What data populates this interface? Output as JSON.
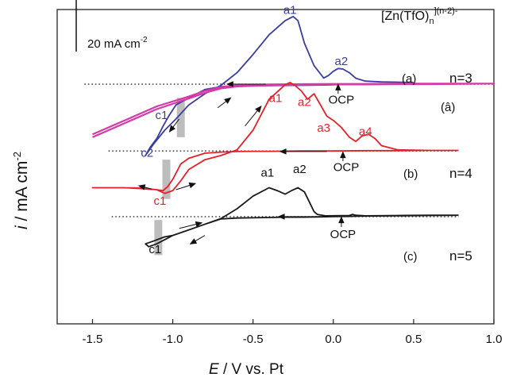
{
  "chart_data": {
    "type": "line",
    "title": "",
    "legend_text": {
      "main": "[Zn(TfO)",
      "sub": "n",
      "sup": "](n-2)-"
    },
    "xlabel": {
      "italic": "E",
      "rest": " / V vs. Pt"
    },
    "ylabel": {
      "italic": "i",
      "rest": " / mA cm",
      "sup": "-2"
    },
    "scale_bar": {
      "label": "20 mA cm",
      "sup": "-2",
      "value": 20
    },
    "xlim": [
      -1.72,
      1.0
    ],
    "ylim": [
      -47,
      65
    ],
    "xticks": [
      -1.5,
      -1.0,
      -0.5,
      0.0,
      0.5,
      1.0
    ],
    "xtick_labels": [
      "-1.5",
      "-1.0",
      "-0.5",
      "0.0",
      "0.5",
      "1.0"
    ],
    "grid": false,
    "series": [
      {
        "label": "(a)",
        "n_label": "n=3",
        "color": "#3a3ea0",
        "baseline": 38.4,
        "x": [
          0.48,
          0.3,
          0.1,
          -0.05,
          -0.2,
          -0.4,
          -0.6,
          -0.7,
          -0.8,
          -0.9,
          -0.98,
          -1.02,
          -1.06,
          -1.1,
          -1.14,
          -1.17,
          -1.12,
          -1.05,
          -0.98,
          -0.9,
          -0.8,
          -0.7,
          -0.6,
          -0.5,
          -0.4,
          -0.3,
          -0.25,
          -0.22,
          -0.18,
          -0.12,
          -0.06,
          -0.03,
          0.0,
          0.03,
          0.06,
          0.1,
          0.14,
          0.2,
          0.3,
          0.5
        ],
        "y": [
          38.6,
          38.5,
          38.3,
          38.1,
          38.0,
          37.9,
          37.8,
          37.5,
          36.5,
          33.5,
          31.0,
          27.5,
          23.5,
          19.0,
          16.0,
          13.0,
          17.0,
          22.0,
          26.0,
          31.0,
          35.0,
          38.0,
          42.5,
          49.0,
          56.0,
          61.0,
          62.5,
          61.0,
          53.0,
          45.0,
          40.6,
          41.5,
          43.0,
          44.0,
          43.8,
          42.5,
          40.5,
          39.5,
          39.2,
          39.0
        ]
      },
      {
        "label": "(â)",
        "color": "#d63aa8",
        "baseline": 38.4,
        "x": [
          -1.5,
          -1.3,
          -1.1,
          -0.9,
          -0.8,
          -0.7,
          -0.6,
          -0.4,
          -0.2,
          0.0,
          0.2,
          0.4,
          0.6,
          0.8,
          1.0,
          0.8,
          0.6,
          0.4,
          0.2,
          0.0,
          -0.2,
          -0.4,
          -0.6,
          -0.7,
          -0.8,
          -0.9,
          -1.1,
          -1.3,
          -1.5
        ],
        "y": [
          20.5,
          25.5,
          30.5,
          34.0,
          36.0,
          37.4,
          38.0,
          38.3,
          38.4,
          38.5,
          38.5,
          38.6,
          38.6,
          38.6,
          38.6,
          38.5,
          38.4,
          38.4,
          38.3,
          38.3,
          38.2,
          38.0,
          37.6,
          36.9,
          35.3,
          33.3,
          29.5,
          24.5,
          19.5
        ]
      },
      {
        "label": "(b)",
        "n_label": "n=4",
        "color": "#e5202a",
        "baseline": 14.6,
        "x": [
          0.78,
          0.6,
          0.4,
          0.2,
          0.0,
          -0.2,
          -0.4,
          -0.5,
          -0.6,
          -0.7,
          -0.8,
          -0.9,
          -0.95,
          -1.0,
          -1.03,
          -1.06,
          -1.1,
          -1.2,
          -1.3,
          -1.5,
          -1.3,
          -1.2,
          -1.1,
          -1.05,
          -1.0,
          -0.95,
          -0.9,
          -0.8,
          -0.7,
          -0.6,
          -0.5,
          -0.4,
          -0.3,
          -0.27,
          -0.24,
          -0.2,
          -0.16,
          -0.12,
          -0.08,
          -0.04,
          0.0,
          0.05,
          0.1,
          0.14,
          0.18,
          0.22,
          0.26,
          0.3,
          0.4,
          0.6,
          0.78
        ],
        "y": [
          14.8,
          14.8,
          14.7,
          14.7,
          14.6,
          14.6,
          14.5,
          14.5,
          14.4,
          14.2,
          13.8,
          12.0,
          10.0,
          4.5,
          2.0,
          0.5,
          0.8,
          1.4,
          1.5,
          1.5,
          1.5,
          1.2,
          0.8,
          -0.5,
          0.5,
          4.0,
          8.0,
          11.5,
          13.0,
          15.0,
          22.0,
          33.0,
          38.2,
          39.0,
          38.0,
          36.0,
          33.0,
          35.0,
          31.0,
          27.0,
          25.5,
          23.0,
          19.5,
          18.0,
          20.0,
          20.5,
          19.0,
          16.5,
          15.0,
          14.8,
          14.8
        ]
      },
      {
        "label": "(c)",
        "n_label": "n=5",
        "color": "#1a1a1a",
        "baseline": -8.8,
        "x": [
          0.78,
          0.6,
          0.4,
          0.2,
          0.1,
          0.0,
          -0.1,
          -0.2,
          -0.3,
          -0.4,
          -0.5,
          -0.6,
          -0.7,
          -0.8,
          -0.9,
          -1.0,
          -1.05,
          -1.1,
          -1.15,
          -1.17,
          -1.12,
          -1.05,
          -1.0,
          -0.95,
          -0.9,
          -0.8,
          -0.7,
          -0.6,
          -0.5,
          -0.4,
          -0.35,
          -0.3,
          -0.26,
          -0.22,
          -0.18,
          -0.15,
          -0.12,
          -0.1,
          -0.05,
          0.1,
          0.12,
          0.14,
          0.2,
          0.4,
          0.6,
          0.78
        ],
        "y": [
          -8.3,
          -8.4,
          -8.5,
          -8.6,
          -8.7,
          -8.8,
          -8.9,
          -9.0,
          -9.0,
          -9.1,
          -9.2,
          -9.3,
          -9.6,
          -11.5,
          -13.5,
          -15.5,
          -17.0,
          -18.5,
          -19.5,
          -18.5,
          -17.5,
          -16.0,
          -15.5,
          -14.5,
          -13.5,
          -11.5,
          -9.5,
          -6.0,
          -1.5,
          1.5,
          0.5,
          -0.8,
          0.5,
          1.5,
          0.0,
          -3.5,
          -7.0,
          -8.0,
          -8.5,
          -8.4,
          -8.0,
          -8.3,
          -8.5,
          -8.4,
          -8.3,
          -8.3
        ]
      }
    ],
    "annotations": [
      {
        "text": "a1",
        "x": -0.27,
        "y": 63.5,
        "color": "#3a3ea0"
      },
      {
        "text": "a2",
        "x": 0.05,
        "y": 45.2,
        "color": "#3a3ea0"
      },
      {
        "text": "c1",
        "x": -1.07,
        "y": 26.0,
        "color": "#3a3ea0"
      },
      {
        "text": "c2",
        "x": -1.16,
        "y": 12.6,
        "color": "#3a3ea0"
      },
      {
        "text": "a1",
        "x": -0.36,
        "y": 32.0,
        "color": "#e5202a"
      },
      {
        "text": "a2",
        "x": -0.18,
        "y": 30.6,
        "color": "#e5202a"
      },
      {
        "text": "a3",
        "x": -0.06,
        "y": 21.5,
        "color": "#e5202a"
      },
      {
        "text": "a4",
        "x": 0.2,
        "y": 20.2,
        "color": "#e5202a"
      },
      {
        "text": "c1",
        "x": -1.08,
        "y": -4.6,
        "color": "#e5202a"
      },
      {
        "text": "a1",
        "x": -0.41,
        "y": 5.4,
        "color": "#111111"
      },
      {
        "text": "a2",
        "x": -0.21,
        "y": 6.8,
        "color": "#111111"
      },
      {
        "text": "c1",
        "x": -1.11,
        "y": -21.8,
        "color": "#111111"
      },
      {
        "text": "OCP",
        "x": 0.05,
        "y": 31.5,
        "color": "#111111"
      },
      {
        "text": "OCP",
        "x": 0.08,
        "y": 7.5,
        "color": "#111111"
      },
      {
        "text": "OCP",
        "x": 0.06,
        "y": -16.5,
        "color": "#111111"
      }
    ],
    "bands": [
      {
        "x": -0.95,
        "y": [
          19.5,
          33.5
        ]
      },
      {
        "x": -1.04,
        "y": [
          -2.5,
          11.5
        ]
      },
      {
        "x": -1.09,
        "y": [
          -22.5,
          -10.0
        ]
      }
    ]
  }
}
